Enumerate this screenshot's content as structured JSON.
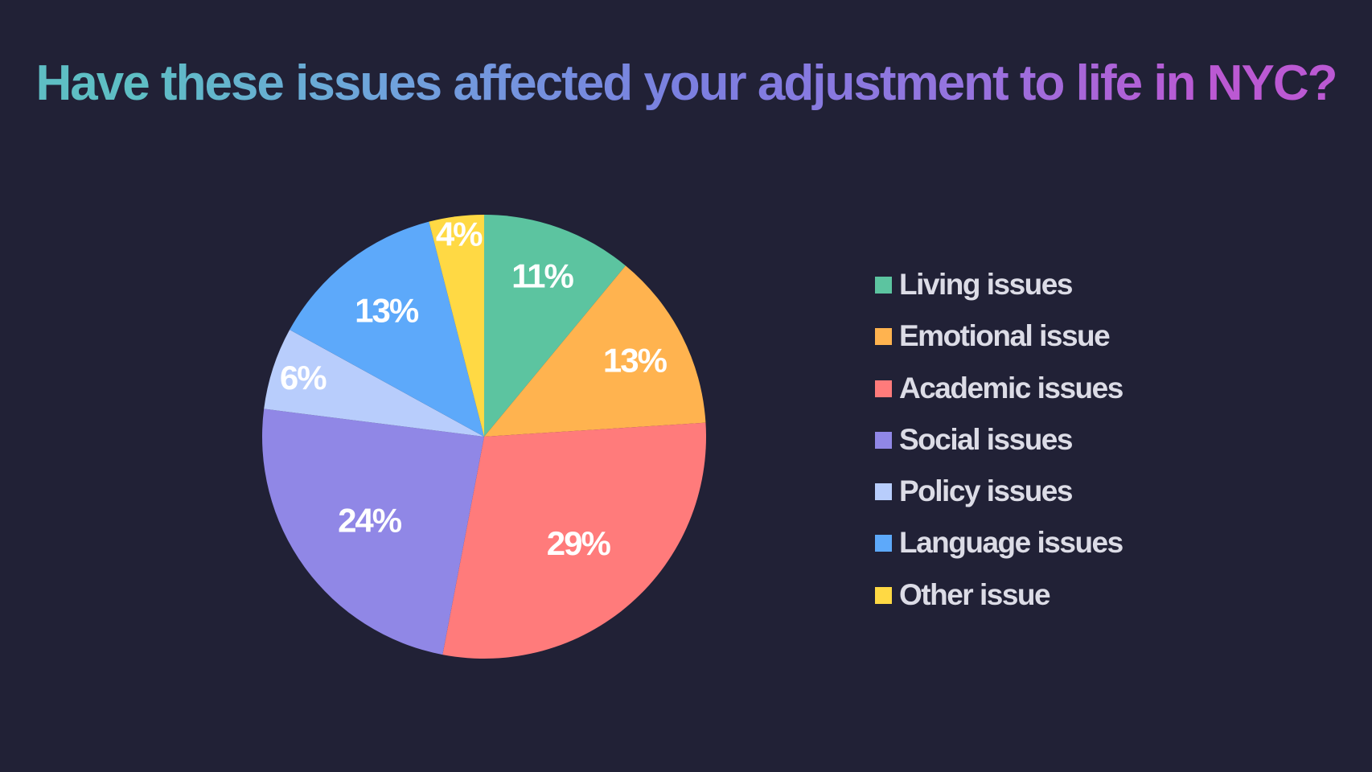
{
  "title": "Have these issues affected your adjustment to life in NYC?",
  "chart_data": {
    "type": "pie",
    "title": "Have these issues affected your adjustment to life in NYC?",
    "slices": [
      {
        "label": "Living issues",
        "value": 11,
        "display": "11%",
        "color": "#5cc4a0"
      },
      {
        "label": "Emotional issue",
        "value": 13,
        "display": "13%",
        "color": "#ffb34f"
      },
      {
        "label": "Academic issues",
        "value": 29,
        "display": "29%",
        "color": "#ff7b7b"
      },
      {
        "label": "Social issues",
        "value": 24,
        "display": "24%",
        "color": "#9087e6"
      },
      {
        "label": "Policy issues",
        "value": 6,
        "display": "6%",
        "color": "#b8cdfc"
      },
      {
        "label": "Language issues",
        "value": 13,
        "display": "13%",
        "color": "#5da9fa"
      },
      {
        "label": "Other issue",
        "value": 4,
        "display": "4%",
        "color": "#ffd944"
      }
    ],
    "legend_position": "right"
  }
}
